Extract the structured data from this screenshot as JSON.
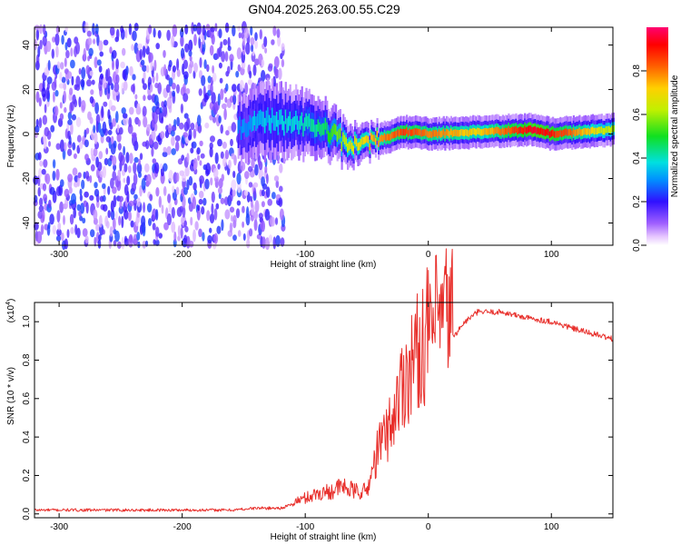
{
  "title": "GN04.2025.263.00.55.C29",
  "colors": {
    "snr_line": "#e8302c",
    "frame": "#000000"
  },
  "chart_data": [
    {
      "type": "heatmap",
      "xlabel": "Height of straight line (km)",
      "ylabel": "Frequency (Hz)",
      "xlim": [
        -320,
        150
      ],
      "ylim": [
        -50,
        48
      ],
      "xticks": [
        -300,
        -200,
        -100,
        0,
        100
      ],
      "xtick_labels": [
        "-300",
        "-200",
        "-100",
        "0",
        "100"
      ],
      "yticks": [
        -40,
        -20,
        0,
        20,
        40
      ],
      "ytick_labels": [
        "-40",
        "-20",
        "0",
        "20",
        "40"
      ],
      "colorbar": {
        "label": "Normalized spectral amplitude",
        "range": [
          0,
          1
        ],
        "ticks": [
          0.0,
          0.2,
          0.4,
          0.6,
          0.8
        ],
        "tick_labels": [
          "0.0",
          "0.2",
          "0.4",
          "0.6",
          "0.8"
        ],
        "colormap": "rainbow"
      },
      "noise_region": {
        "x_range": [
          -320,
          -120
        ],
        "freq_range": [
          -50,
          48
        ],
        "amplitude": 0.05
      },
      "ridge": [
        {
          "x": -155,
          "freq": 3,
          "halfwidth": 6,
          "amplitude": 0.3
        },
        {
          "x": -130,
          "freq": 6,
          "halfwidth": 7,
          "amplitude": 0.35
        },
        {
          "x": -100,
          "freq": 4,
          "halfwidth": 6,
          "amplitude": 0.4
        },
        {
          "x": -80,
          "freq": 1,
          "halfwidth": 5,
          "amplitude": 0.5
        },
        {
          "x": -65,
          "freq": -5,
          "halfwidth": 4,
          "amplitude": 0.65
        },
        {
          "x": -45,
          "freq": -3,
          "halfwidth": 3,
          "amplitude": 0.75
        },
        {
          "x": -20,
          "freq": 1,
          "halfwidth": 3,
          "amplitude": 0.85
        },
        {
          "x": 0,
          "freq": 0,
          "halfwidth": 3,
          "amplitude": 0.8
        },
        {
          "x": 40,
          "freq": 1,
          "halfwidth": 3,
          "amplitude": 0.7
        },
        {
          "x": 85,
          "freq": 2,
          "halfwidth": 3,
          "amplitude": 0.95
        },
        {
          "x": 100,
          "freq": 0,
          "halfwidth": 3,
          "amplitude": 0.9
        },
        {
          "x": 150,
          "freq": 2,
          "halfwidth": 3,
          "amplitude": 0.6
        }
      ]
    },
    {
      "type": "line",
      "xlabel": "Height of straight line (km)",
      "ylabel": "SNR (10 * v/v)",
      "scale_label": "(x10",
      "scale_exp": "4",
      "scale_close": ")",
      "xlim": [
        -320,
        150
      ],
      "ylim": [
        -0.02,
        1.1
      ],
      "xticks": [
        -300,
        -200,
        -100,
        0,
        100
      ],
      "xtick_labels": [
        "-300",
        "-200",
        "-100",
        "0",
        "100"
      ],
      "yticks": [
        0.0,
        0.2,
        0.4,
        0.6,
        0.8,
        1.0
      ],
      "ytick_labels": [
        "0.0",
        "0.2",
        "0.4",
        "0.6",
        "0.8",
        "1.0"
      ],
      "series": [
        {
          "x": [
            -320,
            -250,
            -200,
            -160,
            -140,
            -120,
            -100,
            -90,
            -80,
            -70,
            -60,
            -50,
            -40,
            -30,
            -20,
            -10,
            0,
            10,
            20,
            30,
            40,
            50,
            60,
            80,
            100,
            120,
            150
          ],
          "y": [
            0.02,
            0.02,
            0.02,
            0.02,
            0.03,
            0.03,
            0.07,
            0.09,
            0.1,
            0.12,
            0.1,
            0.1,
            0.3,
            0.4,
            0.6,
            0.7,
            0.8,
            0.85,
            0.92,
            1.0,
            1.05,
            1.05,
            1.05,
            1.02,
            1.0,
            0.96,
            0.91
          ]
        }
      ]
    }
  ]
}
